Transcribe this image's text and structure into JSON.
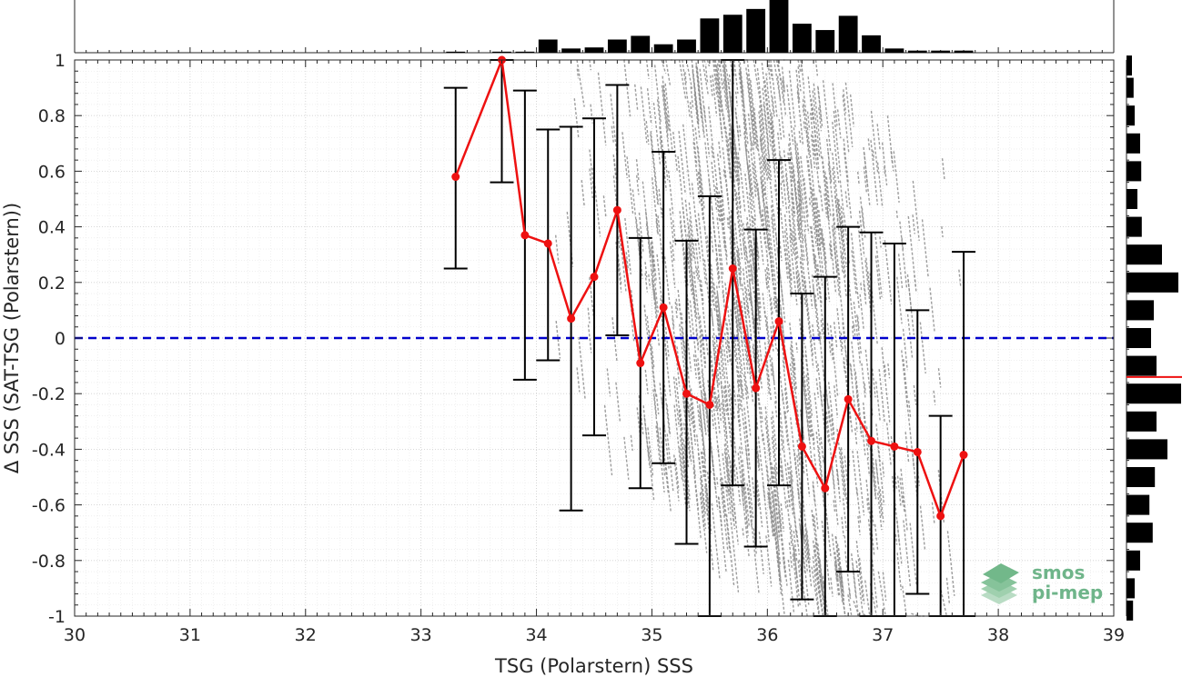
{
  "chart_data": {
    "type": "scatter",
    "xlabel": "TSG (Polarstern) SSS",
    "ylabel": "Δ SSS (SAT-TSG (Polarstern))",
    "xlim": [
      30,
      39
    ],
    "ylim": [
      -1,
      1
    ],
    "x_ticks": [
      30,
      31,
      32,
      33,
      34,
      35,
      36,
      37,
      38,
      39
    ],
    "y_ticks": [
      -1,
      -0.8,
      -0.6,
      -0.4,
      -0.2,
      0,
      0.2,
      0.4,
      0.6,
      0.8,
      1
    ],
    "grid": "on (major and minor, dotted)",
    "zero_line": {
      "y": 0,
      "style": "dashed",
      "color": "#0000cc"
    },
    "binned_mean": {
      "color": "#ee1111",
      "x": [
        33.3,
        33.7,
        33.9,
        34.1,
        34.3,
        34.5,
        34.7,
        34.9,
        35.1,
        35.3,
        35.5,
        35.7,
        35.9,
        36.1,
        36.3,
        36.5,
        36.7,
        36.9,
        37.1,
        37.3,
        37.5,
        37.7
      ],
      "y": [
        0.58,
        1.03,
        0.37,
        0.34,
        0.07,
        0.22,
        0.46,
        -0.09,
        0.11,
        -0.2,
        -0.24,
        0.25,
        -0.18,
        0.06,
        -0.39,
        -0.54,
        -0.22,
        -0.37,
        -0.39,
        -0.41,
        -0.64,
        -0.42
      ],
      "err_low": [
        0.25,
        0.56,
        -0.15,
        -0.08,
        -0.62,
        -0.35,
        0.01,
        -0.54,
        -0.45,
        -0.74,
        -1.0,
        -0.53,
        -0.75,
        -0.53,
        -0.94,
        -1.05,
        -0.84,
        -1.05,
        -1.05,
        -0.92,
        -1.0,
        -1.05
      ],
      "err_high": [
        0.9,
        1.05,
        0.89,
        0.75,
        0.76,
        0.79,
        0.91,
        0.36,
        0.67,
        0.35,
        0.51,
        1.05,
        0.39,
        0.64,
        0.16,
        0.22,
        0.4,
        0.38,
        0.34,
        0.1,
        -0.28,
        0.31
      ]
    },
    "scatter_color": "#8c8c8c",
    "top_histogram": {
      "x_centers": [
        33.3,
        33.5,
        33.7,
        33.9,
        34.1,
        34.3,
        34.5,
        34.7,
        34.9,
        35.1,
        35.3,
        35.5,
        35.7,
        35.9,
        36.1,
        36.3,
        36.5,
        36.7,
        36.9,
        37.1,
        37.3,
        37.5,
        37.7
      ],
      "relative_counts": [
        0.02,
        0.0,
        0.02,
        0.02,
        0.25,
        0.08,
        0.1,
        0.25,
        0.32,
        0.16,
        0.25,
        0.65,
        0.72,
        0.83,
        1.0,
        0.55,
        0.43,
        0.7,
        0.33,
        0.08,
        0.04,
        0.04,
        0.04
      ]
    },
    "right_histogram": {
      "y_centers": [
        0.98,
        0.9,
        0.8,
        0.7,
        0.6,
        0.5,
        0.4,
        0.3,
        0.2,
        0.1,
        0.0,
        -0.1,
        -0.2,
        -0.3,
        -0.4,
        -0.5,
        -0.6,
        -0.7,
        -0.8,
        -0.9,
        -0.98
      ],
      "relative_counts": [
        0.1,
        0.13,
        0.15,
        0.25,
        0.27,
        0.2,
        0.28,
        0.65,
        0.95,
        0.5,
        0.45,
        0.55,
        1.0,
        0.55,
        0.75,
        0.52,
        0.42,
        0.48,
        0.25,
        0.15,
        0.12
      ],
      "mean_marker": {
        "y": -0.14,
        "color": "#ee1111"
      }
    }
  },
  "logo": {
    "line1": "smos",
    "line2": "pi-mep"
  }
}
